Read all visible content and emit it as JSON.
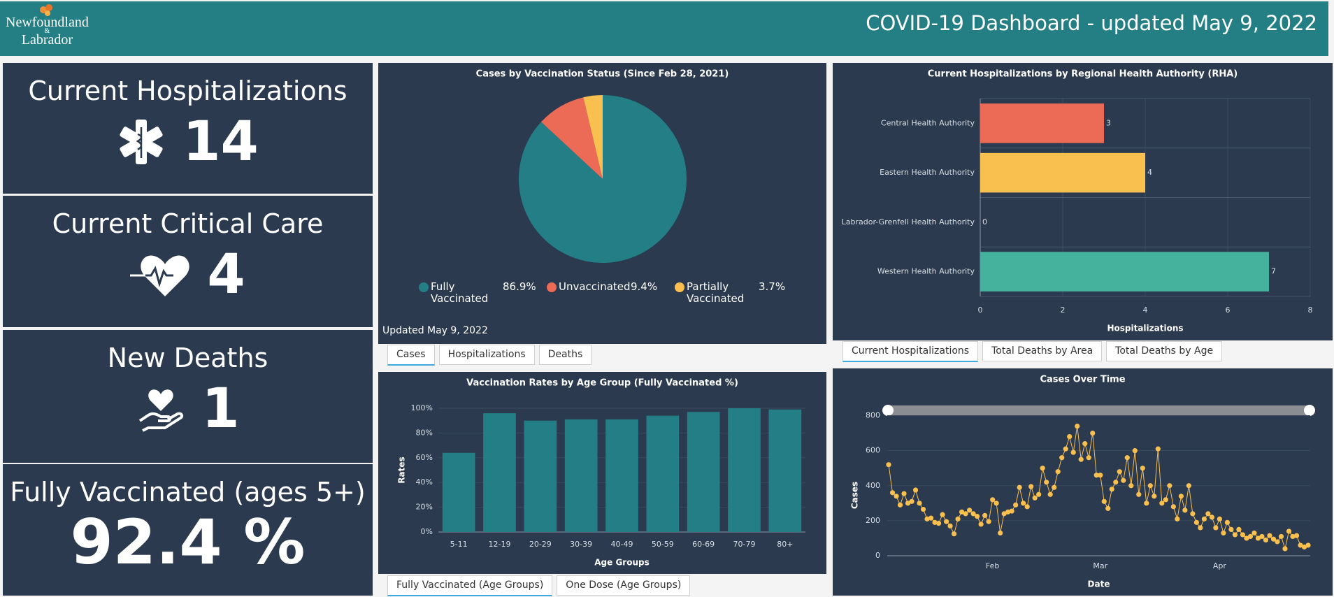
{
  "header": {
    "logo": [
      "Newfoundland",
      "&",
      "Labrador"
    ],
    "title": "COVID-19 Dashboard - updated May 9, 2022"
  },
  "kpis": [
    {
      "label": "Current Hospitalizations",
      "value": 14
    },
    {
      "label": "Current Critical Care",
      "value": 4
    },
    {
      "label": "New Deaths",
      "value": 1
    },
    {
      "label": "Fully Vaccinated (ages 5+)",
      "value": "92.4 %"
    }
  ],
  "chart_data": [
    {
      "type": "pie",
      "title": "Cases by Vaccination Status (Since Feb 28, 2021)",
      "categories": [
        "Fully Vaccinated",
        "Unvaccinated",
        "Partially Vaccinated"
      ],
      "values": [
        86.9,
        9.4,
        3.7
      ],
      "value_labels": [
        "86.9%",
        "9.4%",
        "3.7%"
      ],
      "colors": [
        "#237e85",
        "#ec6b56",
        "#f9bf4f"
      ],
      "footnote": "Updated May 9, 2022"
    },
    {
      "type": "barh",
      "title": "Current Hospitalizations by Regional Health Authority (RHA)",
      "categories": [
        "Central Health Authority",
        "Eastern Health Authority",
        "Labrador-Grenfell Health Authority",
        "Western Health Authority"
      ],
      "values": [
        3,
        4,
        0,
        7
      ],
      "colors": [
        "#ec6b56",
        "#f9bf4f",
        "#5fa8d3",
        "#45b29d"
      ],
      "xlim": [
        0,
        8
      ],
      "xticks": [
        0,
        2,
        4,
        6,
        8
      ],
      "xlabel": "Hospitalizations",
      "grid": true
    },
    {
      "type": "bar",
      "title": "Vaccination Rates by Age Group (Fully Vaccinated %)",
      "categories": [
        "5-11",
        "12-19",
        "20-29",
        "30-39",
        "40-49",
        "50-59",
        "60-69",
        "70-79",
        "80+"
      ],
      "values": [
        64,
        96,
        90,
        91,
        91,
        94,
        97,
        100,
        99
      ],
      "color": "#237e85",
      "ylim": [
        0,
        100
      ],
      "yticks": [
        {
          "value": 0,
          "label": "0%"
        },
        {
          "value": 20,
          "label": "20%"
        },
        {
          "value": 40,
          "label": "40%"
        },
        {
          "value": 60,
          "label": "60%"
        },
        {
          "value": 80,
          "label": "80%"
        },
        {
          "value": 100,
          "label": "100%"
        }
      ],
      "xlabel": "Age Groups",
      "ylabel": "Rates",
      "grid": true
    },
    {
      "type": "line",
      "title": "Cases Over Time",
      "categories": [
        null,
        null,
        null,
        null,
        null,
        null,
        null,
        null,
        null,
        null,
        null,
        null,
        null,
        null,
        null,
        null,
        null,
        null,
        null,
        null,
        null,
        null,
        null,
        null,
        null,
        null,
        null,
        "Feb",
        null,
        null,
        null,
        null,
        null,
        null,
        null,
        null,
        null,
        null,
        null,
        null,
        null,
        null,
        null,
        null,
        null,
        null,
        null,
        null,
        null,
        null,
        null,
        null,
        null,
        null,
        null,
        "Mar",
        null,
        null,
        null,
        null,
        null,
        null,
        null,
        null,
        null,
        null,
        null,
        null,
        null,
        null,
        null,
        null,
        null,
        null,
        null,
        null,
        null,
        null,
        null,
        null,
        null,
        null,
        null,
        null,
        null,
        null,
        "Apr",
        null,
        null,
        null,
        null,
        null,
        null,
        null,
        null,
        null,
        null,
        null,
        null,
        null,
        null,
        null,
        null,
        null,
        null,
        null,
        null,
        null,
        null,
        null
      ],
      "values": [
        520,
        360,
        340,
        290,
        355,
        300,
        310,
        375,
        300,
        265,
        210,
        215,
        190,
        185,
        235,
        195,
        170,
        125,
        210,
        250,
        240,
        260,
        240,
        225,
        180,
        230,
        195,
        320,
        300,
        130,
        240,
        250,
        255,
        290,
        390,
        300,
        280,
        395,
        330,
        350,
        500,
        420,
        350,
        390,
        480,
        560,
        610,
        680,
        590,
        740,
        550,
        640,
        560,
        700,
        460,
        460,
        310,
        270,
        380,
        420,
        480,
        430,
        560,
        400,
        600,
        350,
        500,
        300,
        400,
        340,
        610,
        300,
        320,
        400,
        280,
        210,
        340,
        260,
        400,
        240,
        190,
        160,
        210,
        240,
        220,
        160,
        210,
        130,
        190,
        150,
        120,
        150,
        120,
        100,
        110,
        130,
        100,
        110,
        90,
        115,
        95,
        80,
        110,
        40,
        140,
        110,
        115,
        60,
        50,
        60
      ],
      "color": "#f9bf4f",
      "ylim": [
        0,
        850
      ],
      "yticks": [
        0,
        200,
        400,
        600,
        800
      ],
      "xlabel": "Date",
      "ylabel": "Cases",
      "grid": true
    }
  ],
  "tabs": [
    [
      "Cases",
      "Hospitalizations",
      "Deaths"
    ],
    [
      "Current Hospitalizations",
      "Total Deaths by Area",
      "Total Deaths by Age"
    ],
    [
      "Fully Vaccinated (Age Groups)",
      "One Dose (Age Groups)"
    ]
  ]
}
